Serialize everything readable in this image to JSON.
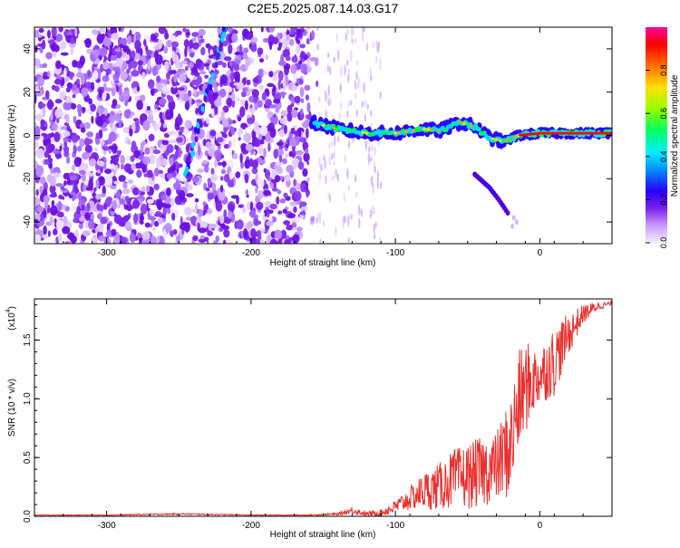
{
  "chart_data": [
    {
      "type": "heatmap",
      "title": "C2E5.2025.087.14.03.G17",
      "xlabel": "Height of straight line (km)",
      "ylabel": "Frequency (Hz)",
      "xlim": [
        -350,
        50
      ],
      "ylim": [
        -50,
        50
      ],
      "xticks": [
        -300,
        -200,
        -100,
        0
      ],
      "yticks": [
        -40,
        -20,
        0,
        20,
        40
      ],
      "colorbar": {
        "label": "Normalized spectral amplitude",
        "range": [
          0,
          1
        ],
        "ticks": [
          0.0,
          0.2,
          0.4,
          0.6,
          0.8
        ],
        "colors": [
          "#ffffff",
          "#e0c8ff",
          "#9a3cff",
          "#5a00d0",
          "#0000ff",
          "#00e5ff",
          "#00ff40",
          "#c8ff00",
          "#ffa000",
          "#ff0000",
          "#ff00a0"
        ]
      },
      "features": {
        "noise_region_x": [
          -350,
          -160
        ],
        "signal_trace": [
          [
            -158,
            6
          ],
          [
            -140,
            3
          ],
          [
            -120,
            1
          ],
          [
            -100,
            1
          ],
          [
            -80,
            3
          ],
          [
            -70,
            2
          ],
          [
            -55,
            6
          ],
          [
            -45,
            4
          ],
          [
            -35,
            -1
          ],
          [
            -25,
            -3
          ],
          [
            -15,
            0
          ],
          [
            0,
            1
          ],
          [
            20,
            1
          ],
          [
            50,
            1
          ]
        ],
        "secondary_branch": [
          [
            -45,
            -18
          ],
          [
            -35,
            -24
          ],
          [
            -28,
            -30
          ],
          [
            -22,
            -36
          ]
        ],
        "ionospheric_streak": [
          [
            -245,
            -17
          ],
          [
            -238,
            0
          ],
          [
            -230,
            20
          ],
          [
            -222,
            40
          ],
          [
            -218,
            50
          ]
        ]
      }
    },
    {
      "type": "line",
      "title": "",
      "xlabel": "Height of straight line (km)",
      "ylabel": "SNR (10 * v/v)",
      "y_multiplier": "(x10",
      "y_multiplier_exp": "4",
      "xlim": [
        -350,
        50
      ],
      "ylim": [
        0,
        1.85
      ],
      "xticks": [
        -300,
        -200,
        -100,
        0
      ],
      "yticks": [
        0.0,
        0.5,
        1.0,
        1.5
      ],
      "series": [
        {
          "color": "#e8302e",
          "x": [
            -350,
            -300,
            -250,
            -200,
            -160,
            -140,
            -130,
            -120,
            -110,
            -100,
            -90,
            -80,
            -70,
            -60,
            -50,
            -40,
            -30,
            -20,
            -15,
            -10,
            -5,
            0,
            10,
            20,
            30,
            40,
            50
          ],
          "y": [
            0.01,
            0.01,
            0.02,
            0.01,
            0.01,
            0.02,
            0.05,
            0.02,
            0.03,
            0.08,
            0.15,
            0.22,
            0.25,
            0.32,
            0.34,
            0.38,
            0.42,
            0.6,
            0.95,
            1.1,
            1.15,
            1.2,
            1.32,
            1.55,
            1.72,
            1.79,
            1.81
          ],
          "jitter": [
            0.004,
            0.004,
            0.006,
            0.004,
            0.005,
            0.01,
            0.03,
            0.02,
            0.03,
            0.06,
            0.1,
            0.16,
            0.2,
            0.25,
            0.28,
            0.3,
            0.3,
            0.45,
            0.45,
            0.4,
            0.3,
            0.25,
            0.3,
            0.18,
            0.08,
            0.04,
            0.02
          ]
        }
      ]
    }
  ]
}
